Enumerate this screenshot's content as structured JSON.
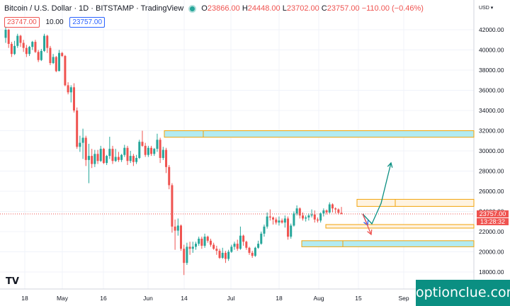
{
  "header": {
    "symbol": "Bitcoin / U.S. Dollar",
    "interval": "1D",
    "exchange": "BITSTAMP",
    "platform": "TradingView",
    "open_label": "O",
    "open": "23866.00",
    "high_label": "H",
    "high": "24448.00",
    "low_label": "L",
    "low": "23702.00",
    "close_label": "C",
    "close": "23757.00",
    "change": "−110.00 (−0.46%)"
  },
  "order": {
    "sell": "23747.00",
    "spread": "10.00",
    "buy": "23757.00"
  },
  "price_axis": {
    "currency": "USD",
    "ticks": [
      "42000.00",
      "40000.00",
      "38000.00",
      "36000.00",
      "34000.00",
      "32000.00",
      "30000.00",
      "28000.00",
      "26000.00",
      "24000.00",
      "22000.00",
      "20000.00",
      "18000.00"
    ],
    "current_price": "23757.00",
    "countdown": "13:28:32"
  },
  "time_axis": {
    "ticks": [
      "18",
      "May",
      "16",
      "Jun",
      "14",
      "Jul",
      "18",
      "Aug",
      "15",
      "Sep"
    ]
  },
  "branding": {
    "logo": "TV",
    "watermark": "optionclue.com"
  },
  "colors": {
    "up": "#26a69a",
    "down": "#ef5350",
    "zone_fill": "#b2ebf2",
    "zone_border": "#f0a30a"
  },
  "chart_data": {
    "type": "candlestick",
    "ylim": [
      17000,
      43500
    ],
    "start": "2022-04-13",
    "candles": [
      [
        41200,
        42300,
        40700,
        42000
      ],
      [
        42000,
        42100,
        40200,
        40600
      ],
      [
        40600,
        40800,
        39300,
        39600
      ],
      [
        39600,
        40900,
        39500,
        40400
      ],
      [
        40400,
        41600,
        40200,
        41400
      ],
      [
        41400,
        41500,
        40300,
        40700
      ],
      [
        40700,
        41000,
        39800,
        40200
      ],
      [
        40200,
        40500,
        39300,
        39600
      ],
      [
        39600,
        40400,
        39400,
        40300
      ],
      [
        40300,
        40900,
        40000,
        40800
      ],
      [
        40800,
        41000,
        39700,
        39800
      ],
      [
        39800,
        40000,
        38800,
        39000
      ],
      [
        39000,
        40100,
        38900,
        39900
      ],
      [
        39900,
        41600,
        39800,
        41400
      ],
      [
        41400,
        41500,
        39700,
        40200
      ],
      [
        40200,
        40400,
        38500,
        38700
      ],
      [
        38700,
        39600,
        38600,
        39300
      ],
      [
        39300,
        39400,
        37800,
        37900
      ],
      [
        37900,
        40000,
        37900,
        39700
      ],
      [
        39700,
        39800,
        39300,
        39400
      ],
      [
        39400,
        39500,
        36400,
        36500
      ],
      [
        36500,
        36800,
        35600,
        35800
      ],
      [
        35800,
        36500,
        34800,
        36300
      ],
      [
        36300,
        36700,
        33800,
        34000
      ],
      [
        34000,
        34300,
        30200,
        30400
      ],
      [
        30400,
        31500,
        29900,
        30800
      ],
      [
        30800,
        32200,
        29200,
        31300
      ],
      [
        31300,
        31500,
        28500,
        29100
      ],
      [
        29100,
        30700,
        26800,
        29500
      ],
      [
        29500,
        30200,
        28300,
        28700
      ],
      [
        28700,
        30100,
        28400,
        29700
      ],
      [
        29700,
        30100,
        28700,
        29000
      ],
      [
        29000,
        30500,
        28900,
        30200
      ],
      [
        30200,
        30300,
        28700,
        28800
      ],
      [
        28800,
        29600,
        28600,
        29500
      ],
      [
        29500,
        31400,
        29200,
        30200
      ],
      [
        30200,
        30500,
        28700,
        29000
      ],
      [
        29000,
        30200,
        28900,
        29400
      ],
      [
        29400,
        29900,
        28900,
        29100
      ],
      [
        29100,
        29700,
        28900,
        29600
      ],
      [
        29600,
        30600,
        29400,
        30300
      ],
      [
        30300,
        30500,
        28600,
        29000
      ],
      [
        29000,
        30000,
        28800,
        29500
      ],
      [
        29500,
        29700,
        28500,
        28900
      ],
      [
        28900,
        29600,
        28700,
        29300
      ],
      [
        29300,
        31100,
        29200,
        30900
      ],
      [
        30900,
        32000,
        30400,
        30500
      ],
      [
        30500,
        30800,
        29400,
        29600
      ],
      [
        29600,
        30500,
        29400,
        30300
      ],
      [
        30300,
        30500,
        29500,
        29700
      ],
      [
        29700,
        30300,
        29500,
        30200
      ],
      [
        30200,
        31700,
        29900,
        31100
      ],
      [
        31100,
        31300,
        28800,
        29300
      ],
      [
        29300,
        30400,
        29100,
        30100
      ],
      [
        30100,
        30300,
        27800,
        28400
      ],
      [
        28400,
        28600,
        26200,
        26600
      ],
      [
        26600,
        26800,
        21900,
        22500
      ],
      [
        22500,
        23200,
        20200,
        22100
      ],
      [
        22100,
        23300,
        21600,
        22600
      ],
      [
        22600,
        22700,
        20100,
        20300
      ],
      [
        20300,
        20700,
        17700,
        18900
      ],
      [
        18900,
        20900,
        18700,
        20500
      ],
      [
        20500,
        21000,
        19700,
        20300
      ],
      [
        20300,
        21000,
        19900,
        20500
      ],
      [
        20500,
        21000,
        20200,
        20800
      ],
      [
        20800,
        21500,
        20600,
        21300
      ],
      [
        21300,
        21500,
        20300,
        20600
      ],
      [
        20600,
        21800,
        20400,
        21500
      ],
      [
        21500,
        21600,
        20900,
        21100
      ],
      [
        21100,
        21300,
        20500,
        20700
      ],
      [
        20700,
        20900,
        20200,
        20300
      ],
      [
        20300,
        20600,
        19700,
        20100
      ],
      [
        20100,
        20300,
        19300,
        19400
      ],
      [
        19400,
        20400,
        19300,
        19900
      ],
      [
        19900,
        20100,
        18900,
        19300
      ],
      [
        19300,
        20200,
        19100,
        20000
      ],
      [
        20000,
        20700,
        19900,
        20500
      ],
      [
        20500,
        21000,
        20200,
        20800
      ],
      [
        20800,
        21200,
        20100,
        20300
      ],
      [
        20300,
        22500,
        20200,
        21600
      ],
      [
        21600,
        21700,
        20600,
        21000
      ],
      [
        21000,
        21100,
        20200,
        20400
      ],
      [
        20400,
        20500,
        19700,
        19900
      ],
      [
        19900,
        20100,
        19400,
        19600
      ],
      [
        19600,
        20500,
        19500,
        20400
      ],
      [
        20400,
        21100,
        20300,
        20800
      ],
      [
        20800,
        22000,
        20700,
        21800
      ],
      [
        21800,
        22700,
        21500,
        22500
      ],
      [
        22500,
        23900,
        22300,
        23500
      ],
      [
        23500,
        24200,
        23100,
        23400
      ],
      [
        23400,
        23500,
        22700,
        23200
      ],
      [
        23200,
        23400,
        22700,
        22900
      ],
      [
        22900,
        23500,
        22600,
        23100
      ],
      [
        23100,
        23300,
        22800,
        22900
      ],
      [
        22900,
        23600,
        22400,
        23300
      ],
      [
        23300,
        23500,
        21200,
        21500
      ],
      [
        21500,
        22800,
        21300,
        22600
      ],
      [
        22600,
        24000,
        22500,
        23800
      ],
      [
        23800,
        24600,
        23600,
        24300
      ],
      [
        24300,
        24400,
        23300,
        23600
      ],
      [
        23600,
        23900,
        23100,
        23300
      ],
      [
        23300,
        23600,
        23000,
        23400
      ],
      [
        23400,
        23800,
        23100,
        23600
      ],
      [
        23600,
        24200,
        23400,
        23700
      ],
      [
        23700,
        24100,
        22900,
        23200
      ],
      [
        23200,
        23400,
        22900,
        23100
      ],
      [
        23100,
        23900,
        22900,
        23800
      ],
      [
        23800,
        24300,
        23500,
        24100
      ],
      [
        24100,
        24200,
        23700,
        23900
      ],
      [
        23900,
        24900,
        23800,
        24700
      ],
      [
        24700,
        24800,
        23900,
        24300
      ],
      [
        24300,
        24400,
        23800,
        24200
      ],
      [
        24200,
        24300,
        23700,
        23866
      ],
      [
        23866,
        24448,
        23702,
        23757
      ]
    ]
  }
}
